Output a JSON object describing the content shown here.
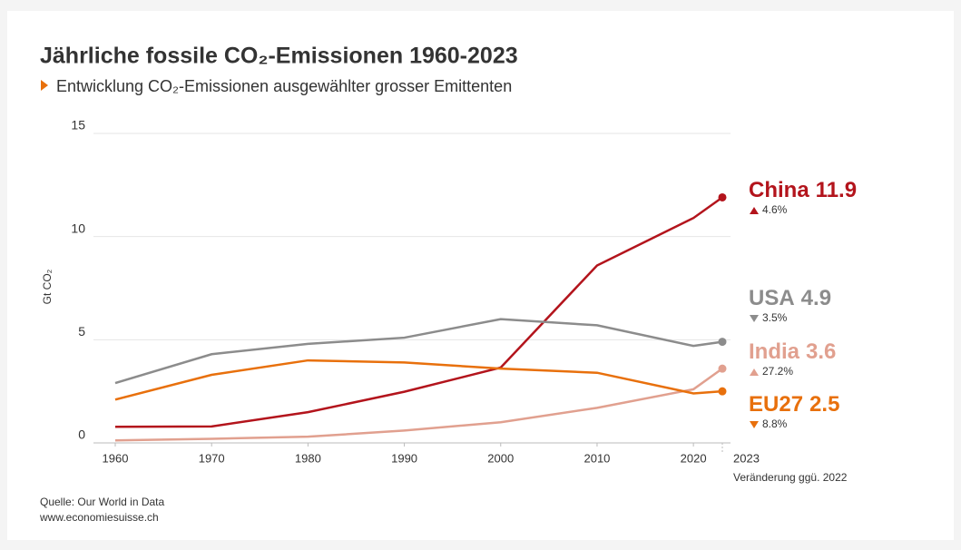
{
  "chart_data": {
    "type": "line",
    "title": "Jährliche fossile CO₂-Emissionen 1960-2023",
    "subtitle": "Entwicklung CO₂-Emissionen ausgewählter grosser Emittenten",
    "y_label": "Gt CO₂",
    "x": [
      1960,
      1970,
      1980,
      1990,
      2000,
      2010,
      2020,
      2023
    ],
    "xlim": [
      1960,
      2023
    ],
    "xticks": [
      1960,
      1970,
      1980,
      1990,
      2000,
      2010,
      2020,
      2023
    ],
    "ylim": [
      0,
      15
    ],
    "yticks": [
      0,
      5,
      10,
      15
    ],
    "grid": true,
    "change_note": "Veränderung ggü. 2022",
    "series": [
      {
        "name": "China",
        "color": "#b3141c",
        "values": [
          0.78,
          0.8,
          1.49,
          2.48,
          3.65,
          8.6,
          10.9,
          11.9
        ],
        "change": "4.6%",
        "direction": "up"
      },
      {
        "name": "USA",
        "color": "#8c8c8c",
        "values": [
          2.9,
          4.3,
          4.8,
          5.1,
          6.0,
          5.7,
          4.7,
          4.9
        ],
        "change": "3.5%",
        "direction": "down"
      },
      {
        "name": "India",
        "color": "#e1a08f",
        "values": [
          0.12,
          0.2,
          0.3,
          0.6,
          1.0,
          1.7,
          2.6,
          3.6
        ],
        "change": "27.2%",
        "direction": "up"
      },
      {
        "name": "EU27",
        "color": "#e8700c",
        "values": [
          2.1,
          3.3,
          4.0,
          3.9,
          3.6,
          3.4,
          2.4,
          2.5
        ],
        "change": "8.8%",
        "direction": "down"
      }
    ],
    "source": "Quelle: Our World in Data",
    "website": "www.economiesuisse.ch"
  }
}
